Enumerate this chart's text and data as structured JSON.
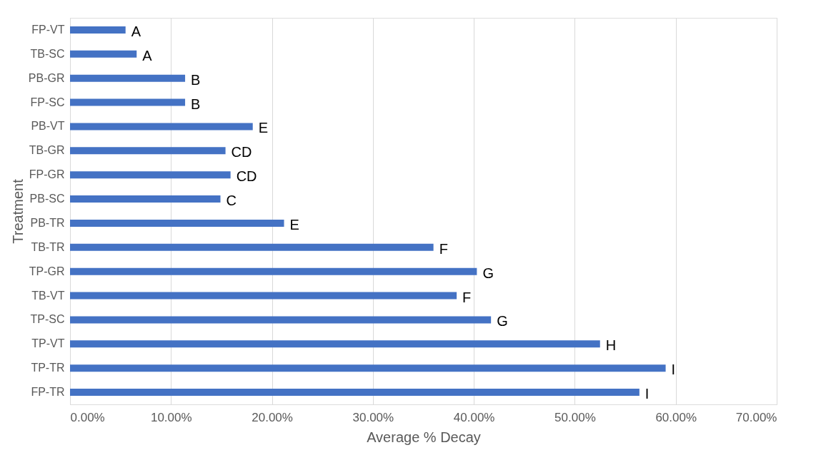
{
  "chart_data": {
    "type": "bar",
    "orientation": "horizontal",
    "xlabel": "Average % Decay",
    "ylabel": "Treatment",
    "categories": [
      "FP-VT",
      "TB-SC",
      "PB-GR",
      "FP-SC",
      "PB-VT",
      "TB-GR",
      "FP-GR",
      "PB-SC",
      "PB-TR",
      "TB-TR",
      "TP-GR",
      "TB-VT",
      "TP-SC",
      "TP-VT",
      "TP-TR",
      "FP-TR"
    ],
    "values": [
      5.5,
      6.6,
      11.4,
      11.4,
      18.1,
      15.4,
      15.9,
      14.9,
      21.2,
      36.0,
      40.3,
      38.3,
      41.7,
      52.5,
      59.0,
      56.4
    ],
    "color": "#4472c4",
    "xlim": [
      0,
      70
    ],
    "xticks": [
      {
        "value": 0,
        "label": "0.00%"
      },
      {
        "value": 10,
        "label": "10.00%"
      },
      {
        "value": 20,
        "label": "20.00%"
      },
      {
        "value": 30,
        "label": "30.00%"
      },
      {
        "value": 40,
        "label": "40.00%"
      },
      {
        "value": 50,
        "label": "50.00%"
      },
      {
        "value": 60,
        "label": "60.00%"
      },
      {
        "value": 70,
        "label": "70.00%"
      }
    ],
    "grid": "x",
    "value_labels": [
      "A",
      "A",
      "B",
      "B",
      "E",
      "CD",
      "CD",
      "C",
      "E",
      "F",
      "G",
      "F",
      "G",
      "H",
      "I",
      "I"
    ]
  }
}
